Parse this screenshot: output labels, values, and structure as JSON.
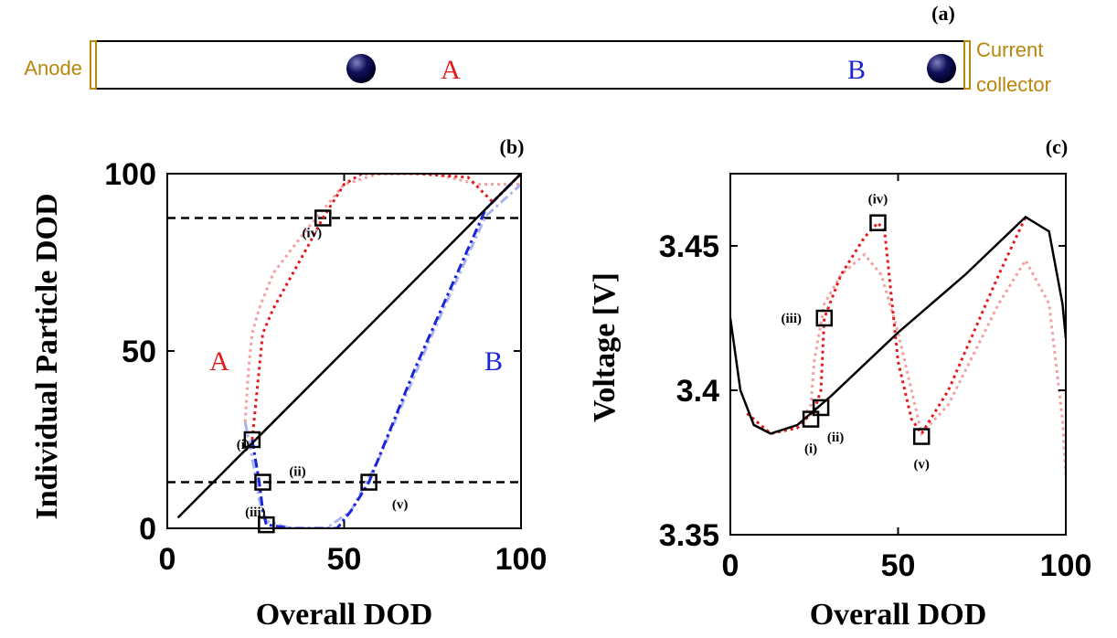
{
  "diagram": {
    "panel_label": "(a)",
    "left_label": "Anode",
    "right_label": [
      "Current",
      "collector"
    ],
    "region_a": "A",
    "region_b": "B"
  },
  "chart_data": [
    {
      "type": "line",
      "title": "(b)",
      "x_label": "Overall DOD",
      "y_label": "Individual Particle DOD",
      "xlim": [
        0,
        100
      ],
      "ylim": [
        0,
        100
      ],
      "xticks": [
        0,
        50,
        100
      ],
      "yticks": [
        0,
        50,
        100
      ],
      "annotations": [
        "A",
        "B"
      ],
      "hlines": [
        87.5,
        13
      ],
      "series": [
        {
          "color": "#f4a0a0",
          "style": "dotted",
          "x": [
            22,
            23,
            24,
            26,
            30,
            40,
            50,
            60,
            75,
            88,
            100
          ],
          "values": [
            30,
            45,
            55,
            62,
            72,
            85,
            97,
            100,
            100,
            97,
            97
          ]
        },
        {
          "color": "#aab4f0",
          "style": "dashdot",
          "x": [
            22,
            24,
            26,
            28,
            35,
            45,
            52,
            60,
            75,
            90,
            100
          ],
          "values": [
            30,
            20,
            8,
            2,
            0,
            0,
            5,
            20,
            55,
            88,
            97
          ]
        },
        {
          "color": "#e41a1c",
          "style": "dotted",
          "x": [
            24,
            26,
            27,
            30,
            40,
            44,
            50,
            55,
            70,
            85,
            92,
            100
          ],
          "values": [
            25,
            45,
            55,
            62,
            80,
            87.5,
            97,
            100,
            100,
            99,
            92,
            100
          ]
        },
        {
          "color": "#1a24d8",
          "style": "dashdot",
          "x": [
            24,
            26,
            27,
            28,
            35,
            48,
            52,
            57,
            70,
            90,
            100
          ],
          "values": [
            25,
            13,
            5,
            1,
            0,
            0,
            5,
            13,
            45,
            90,
            100
          ]
        },
        {
          "color": "#000000",
          "style": "solid",
          "x": [
            3,
            100
          ],
          "values": [
            3,
            100
          ]
        }
      ],
      "markers": {
        "x": [
          24,
          27,
          28,
          44,
          57
        ],
        "values": [
          25,
          13,
          1,
          87.5,
          13
        ],
        "labels": [
          "(i)",
          "(ii)",
          "(iii)",
          "(iv)",
          "(v)"
        ]
      }
    },
    {
      "type": "line",
      "title": "(c)",
      "x_label": "Overall DOD",
      "y_label": "Voltage [V]",
      "xlim": [
        0,
        100
      ],
      "ylim": [
        3.35,
        3.475
      ],
      "xticks": [
        0,
        50,
        100
      ],
      "yticks": [
        3.35,
        3.4,
        3.45
      ],
      "series": [
        {
          "color": "#f4a0a0",
          "style": "dotted",
          "x": [
            5,
            12,
            20,
            24,
            25,
            28,
            33,
            40,
            45,
            50,
            57,
            65,
            80,
            88,
            95,
            99,
            100
          ],
          "values": [
            3.392,
            3.385,
            3.387,
            3.395,
            3.41,
            3.43,
            3.44,
            3.447,
            3.44,
            3.42,
            3.385,
            3.395,
            3.43,
            3.445,
            3.43,
            3.39,
            3.37
          ]
        },
        {
          "color": "#e41a1c",
          "style": "dotted",
          "x": [
            5,
            12,
            20,
            25,
            27,
            28,
            33,
            40,
            44,
            46,
            50,
            54,
            57,
            65,
            80,
            88
          ],
          "values": [
            3.392,
            3.385,
            3.387,
            3.393,
            3.4,
            3.425,
            3.44,
            3.453,
            3.458,
            3.455,
            3.41,
            3.39,
            3.385,
            3.4,
            3.44,
            3.46
          ]
        },
        {
          "color": "#000000",
          "style": "solid",
          "x": [
            0,
            3,
            7,
            12,
            20,
            30,
            50,
            70,
            88,
            95,
            99,
            100
          ],
          "values": [
            3.425,
            3.4,
            3.388,
            3.385,
            3.388,
            3.398,
            3.42,
            3.44,
            3.46,
            3.455,
            3.43,
            3.418
          ]
        }
      ],
      "markers": {
        "x": [
          24,
          27,
          28,
          44,
          57
        ],
        "values": [
          3.39,
          3.394,
          3.425,
          3.458,
          3.384
        ],
        "labels": [
          "(i)",
          "(ii)",
          "(iii)",
          "(iv)",
          "(v)"
        ]
      }
    }
  ]
}
